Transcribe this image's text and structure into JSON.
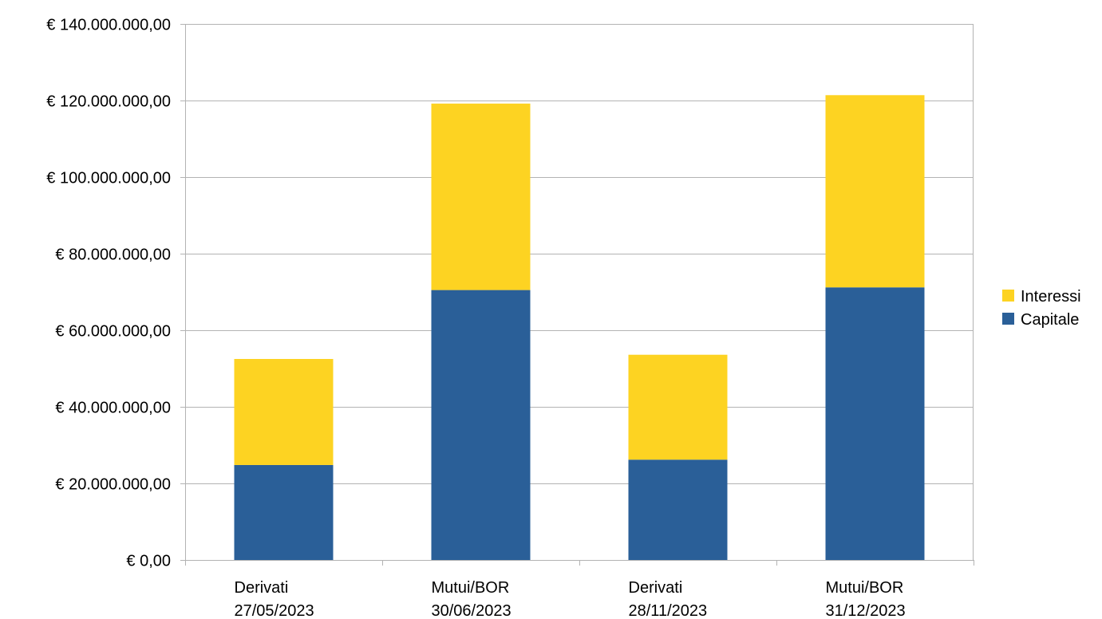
{
  "chart_data": {
    "type": "bar",
    "stacked": true,
    "title": "",
    "xlabel": "",
    "ylabel": "",
    "categories": [
      [
        "Derivati",
        "27/05/2023"
      ],
      [
        "Mutui/BOR",
        "30/06/2023"
      ],
      [
        "Derivati",
        "28/11/2023"
      ],
      [
        "Mutui/BOR",
        "31/12/2023"
      ]
    ],
    "series": [
      {
        "name": "Capitale",
        "color": "#2a5f98",
        "values": [
          24800000,
          70500000,
          26200000,
          71200000
        ]
      },
      {
        "name": "Interessi",
        "color": "#fdd322",
        "values": [
          27700000,
          48700000,
          27400000,
          50200000
        ]
      }
    ],
    "ylim": [
      0,
      140000000
    ],
    "ytick_labels": [
      "€ 0,00",
      "€ 20.000.000,00",
      "€ 40.000.000,00",
      "€ 60.000.000,00",
      "€ 80.000.000,00",
      "€ 100.000.000,00",
      "€ 120.000.000,00",
      "€ 140.000.000,00"
    ],
    "grid": true,
    "legend_position": "right",
    "legend_order": [
      "Interessi",
      "Capitale"
    ]
  }
}
